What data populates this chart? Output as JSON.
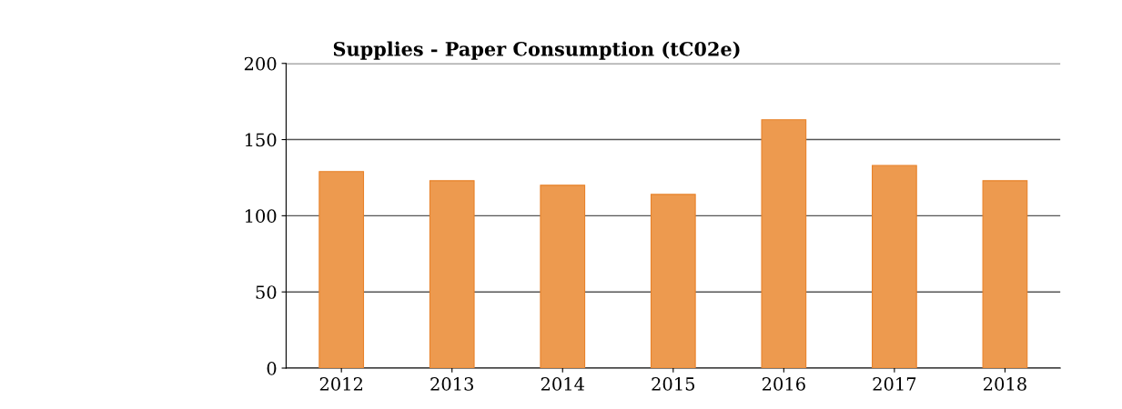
{
  "chart_data": {
    "type": "bar",
    "title": "Supplies - Paper Consumption (tC02e)",
    "categories": [
      "2012",
      "2013",
      "2014",
      "2015",
      "2016",
      "2017",
      "2018"
    ],
    "values": [
      129,
      123,
      120,
      114,
      163,
      133,
      123
    ],
    "color": "#ed9a4f",
    "ylim": [
      0,
      200
    ],
    "yticks": [
      0,
      50,
      100,
      150,
      200
    ],
    "grid": "y"
  }
}
